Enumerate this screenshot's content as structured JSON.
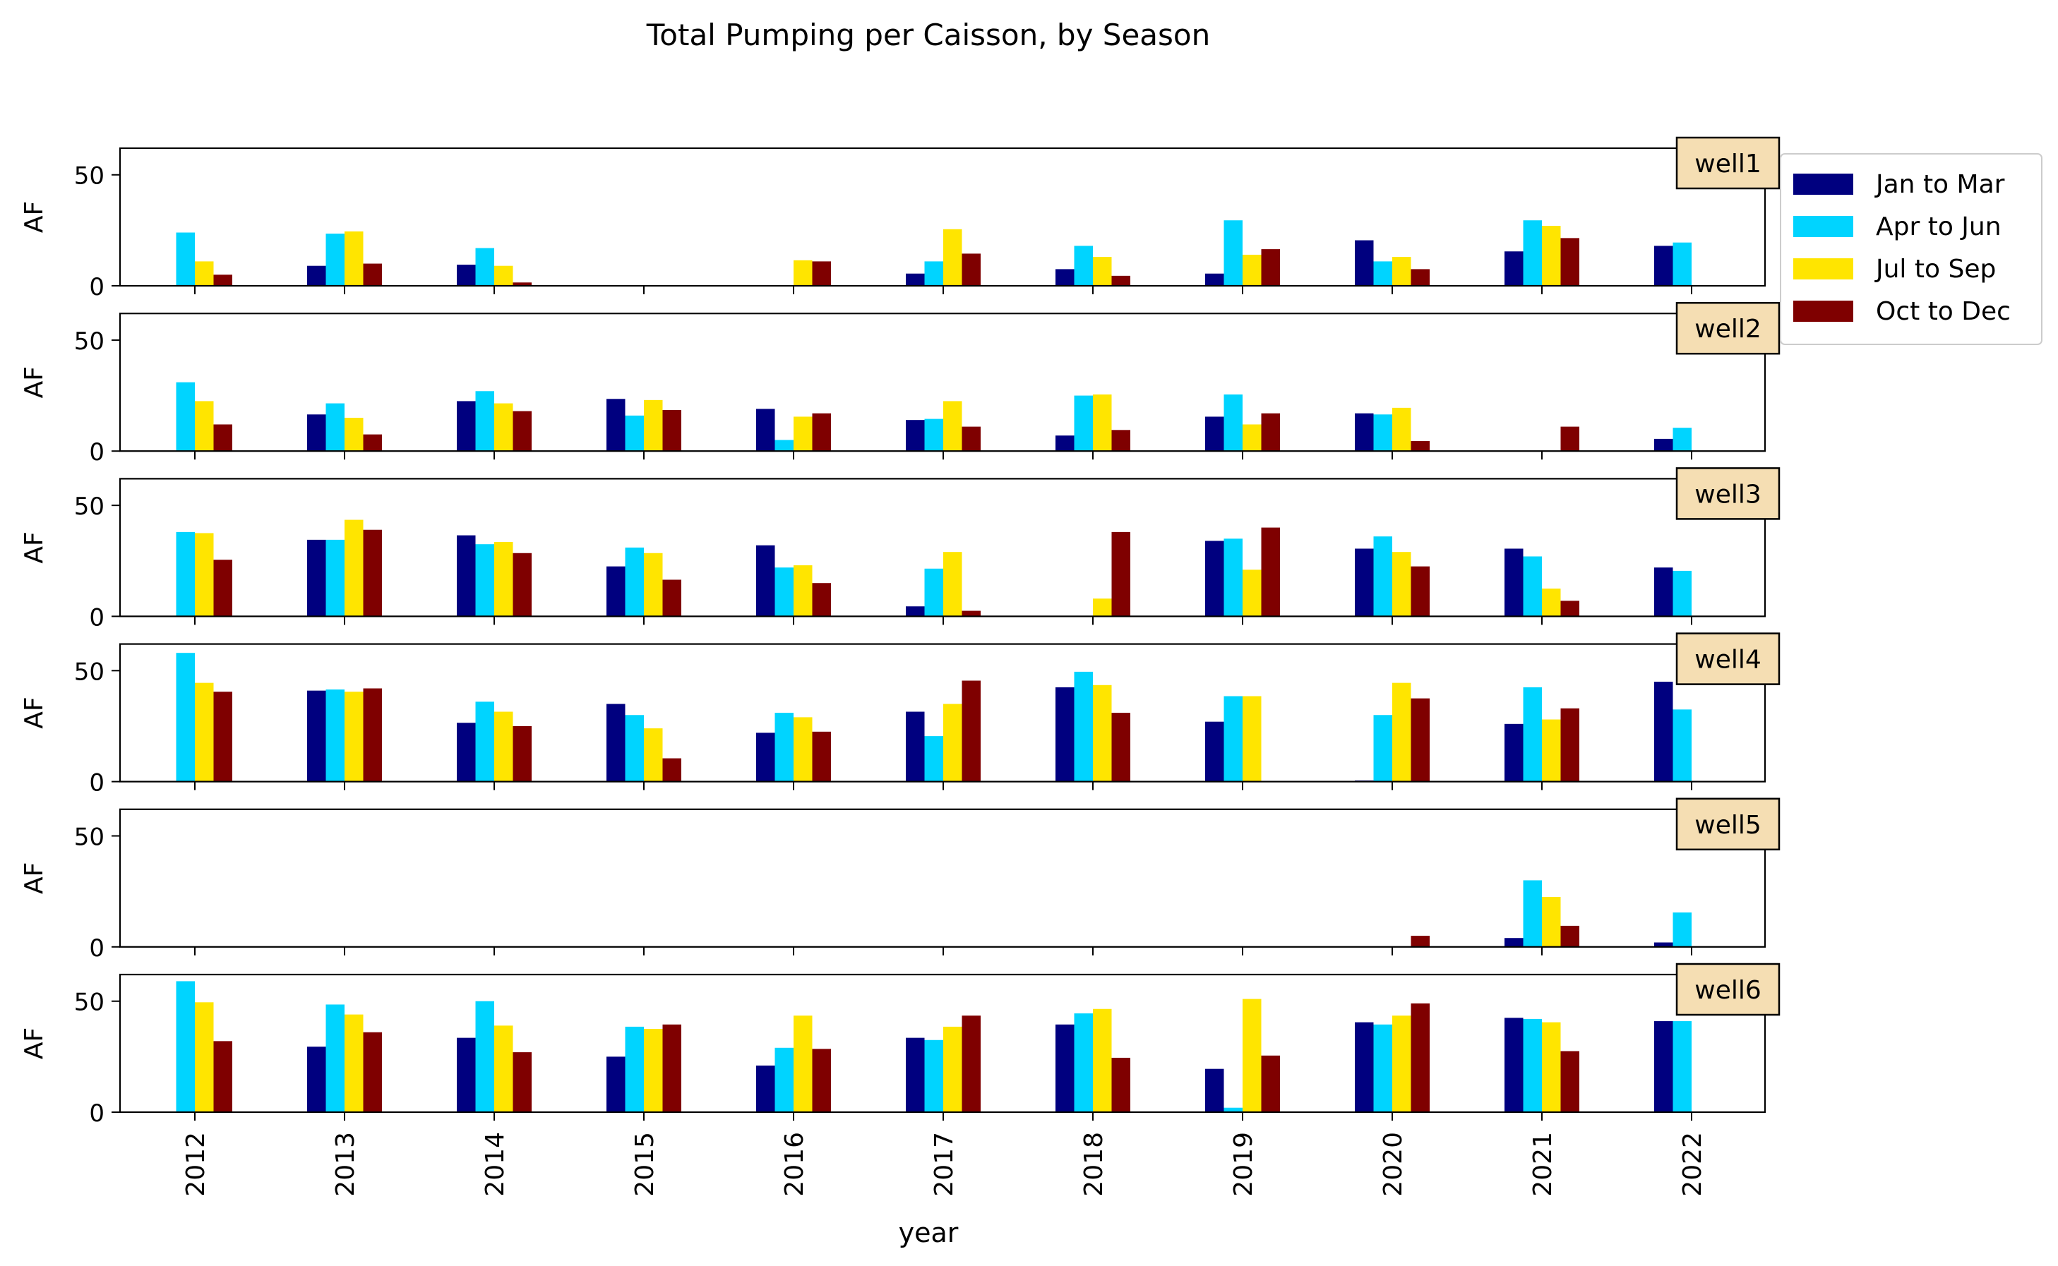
{
  "chart_data": {
    "type": "bar",
    "title": "Total Pumping per Caisson, by Season",
    "xlabel": "year",
    "ylabel": "AF",
    "ylim": [
      0,
      62
    ],
    "yticks": [
      0,
      50
    ],
    "categories": [
      "2012",
      "2013",
      "2014",
      "2015",
      "2016",
      "2017",
      "2018",
      "2019",
      "2020",
      "2021",
      "2022"
    ],
    "legend": {
      "position": "top-right, outside plot",
      "entries": [
        "Jan to Mar",
        "Apr to Jun",
        "Jul to Sep",
        "Oct to Dec"
      ]
    },
    "series_colors": {
      "Jan to Mar": "#00007f",
      "Apr to Jun": "#00d4ff",
      "Jul to Sep": "#ffe500",
      "Oct to Dec": "#7f0000"
    },
    "panel_label_bg": "#f5deb3",
    "panels": [
      {
        "label": "well1",
        "series": [
          {
            "name": "Jan to Mar",
            "values": [
              0,
              9,
              9.5,
              0,
              0,
              5.5,
              7.5,
              5.5,
              20.5,
              15.5,
              18
            ]
          },
          {
            "name": "Apr to Jun",
            "values": [
              24,
              23.5,
              17,
              0,
              0,
              11,
              18,
              29.5,
              11,
              29.5,
              19.5
            ]
          },
          {
            "name": "Jul to Sep",
            "values": [
              11,
              24.5,
              9,
              0,
              11.5,
              25.5,
              13,
              14,
              13,
              27,
              0
            ]
          },
          {
            "name": "Oct to Dec",
            "values": [
              5,
              10,
              1.5,
              0,
              11,
              14.5,
              4.5,
              16.5,
              7.5,
              21.5,
              0
            ]
          }
        ]
      },
      {
        "label": "well2",
        "series": [
          {
            "name": "Jan to Mar",
            "values": [
              0,
              16.5,
              22.5,
              23.5,
              19,
              14,
              7,
              15.5,
              17,
              0,
              5.5
            ]
          },
          {
            "name": "Apr to Jun",
            "values": [
              31,
              21.5,
              27,
              16,
              5,
              14.5,
              25,
              25.5,
              16.5,
              0,
              10.5
            ]
          },
          {
            "name": "Jul to Sep",
            "values": [
              22.5,
              15,
              21.5,
              23,
              15.5,
              22.5,
              25.5,
              12,
              19.5,
              0,
              0
            ]
          },
          {
            "name": "Oct to Dec",
            "values": [
              12,
              7.5,
              18,
              18.5,
              17,
              11,
              9.5,
              17,
              4.5,
              11,
              0
            ]
          }
        ]
      },
      {
        "label": "well3",
        "series": [
          {
            "name": "Jan to Mar",
            "values": [
              0,
              34.5,
              36.5,
              22.5,
              32,
              4.5,
              0,
              34,
              30.5,
              30.5,
              22
            ]
          },
          {
            "name": "Apr to Jun",
            "values": [
              38,
              34.5,
              32.5,
              31,
              22,
              21.5,
              0,
              35,
              36,
              27,
              20.5
            ]
          },
          {
            "name": "Jul to Sep",
            "values": [
              37.5,
              43.5,
              33.5,
              28.5,
              23,
              29,
              8,
              21,
              29,
              12.5,
              0
            ]
          },
          {
            "name": "Oct to Dec",
            "values": [
              25.5,
              39,
              28.5,
              16.5,
              15,
              2.5,
              38,
              40,
              22.5,
              7,
              0
            ]
          }
        ]
      },
      {
        "label": "well4",
        "series": [
          {
            "name": "Jan to Mar",
            "values": [
              0,
              41,
              26.5,
              35,
              22,
              31.5,
              42.5,
              27,
              0.5,
              26,
              45
            ]
          },
          {
            "name": "Apr to Jun",
            "values": [
              58,
              41.5,
              36,
              30,
              31,
              20.5,
              49.5,
              38.5,
              30,
              42.5,
              32.5
            ]
          },
          {
            "name": "Jul to Sep",
            "values": [
              44.5,
              40.5,
              31.5,
              24,
              29,
              35,
              43.5,
              38.5,
              44.5,
              28,
              0
            ]
          },
          {
            "name": "Oct to Dec",
            "values": [
              40.5,
              42,
              25,
              10.5,
              22.5,
              45.5,
              31,
              0,
              37.5,
              33,
              0
            ]
          }
        ]
      },
      {
        "label": "well5",
        "series": [
          {
            "name": "Jan to Mar",
            "values": [
              0,
              0,
              0,
              0,
              0,
              0,
              0,
              0,
              0,
              4,
              2
            ]
          },
          {
            "name": "Apr to Jun",
            "values": [
              0,
              0,
              0,
              0,
              0,
              0,
              0,
              0,
              0,
              30,
              15.5
            ]
          },
          {
            "name": "Jul to Sep",
            "values": [
              0,
              0,
              0,
              0,
              0,
              0,
              0,
              0,
              0,
              22.5,
              0
            ]
          },
          {
            "name": "Oct to Dec",
            "values": [
              0,
              0,
              0,
              0,
              0,
              0,
              0,
              0,
              5,
              9.5,
              0
            ]
          }
        ]
      },
      {
        "label": "well6",
        "series": [
          {
            "name": "Jan to Mar",
            "values": [
              0,
              29.5,
              33.5,
              25,
              21,
              33.5,
              39.5,
              19.5,
              40.5,
              42.5,
              41
            ]
          },
          {
            "name": "Apr to Jun",
            "values": [
              59,
              48.5,
              50,
              38.5,
              29,
              32.5,
              44.5,
              2,
              39.5,
              42,
              41
            ]
          },
          {
            "name": "Jul to Sep",
            "values": [
              49.5,
              44,
              39,
              37.5,
              43.5,
              38.5,
              46.5,
              51,
              43.5,
              40.5,
              0
            ]
          },
          {
            "name": "Oct to Dec",
            "values": [
              32,
              36,
              27,
              39.5,
              28.5,
              43.5,
              24.5,
              25.5,
              49,
              27.5,
              0
            ]
          }
        ]
      }
    ]
  }
}
